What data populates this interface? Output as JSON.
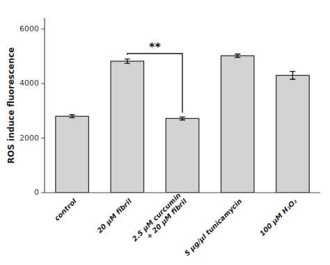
{
  "chart_data": {
    "type": "bar",
    "categories": [
      "control",
      "20 μM fibril",
      "2.5 μM curcumin\n+ 20 μM fibril",
      "5 μg/μl tunicamycin",
      "100 μM H₂O₂"
    ],
    "values": [
      2800,
      4820,
      2720,
      5020,
      4300
    ],
    "errors": [
      55,
      80,
      55,
      60,
      145
    ],
    "color": "#d3d3d3",
    "ylabel": "ROS induce fluorescence",
    "ylim": [
      0,
      6400
    ],
    "yticks": [
      0,
      2000,
      4000,
      6000
    ],
    "grid": false,
    "annotations": [
      {
        "text": "**",
        "from": 1,
        "to": 2,
        "y": 5100
      }
    ]
  }
}
